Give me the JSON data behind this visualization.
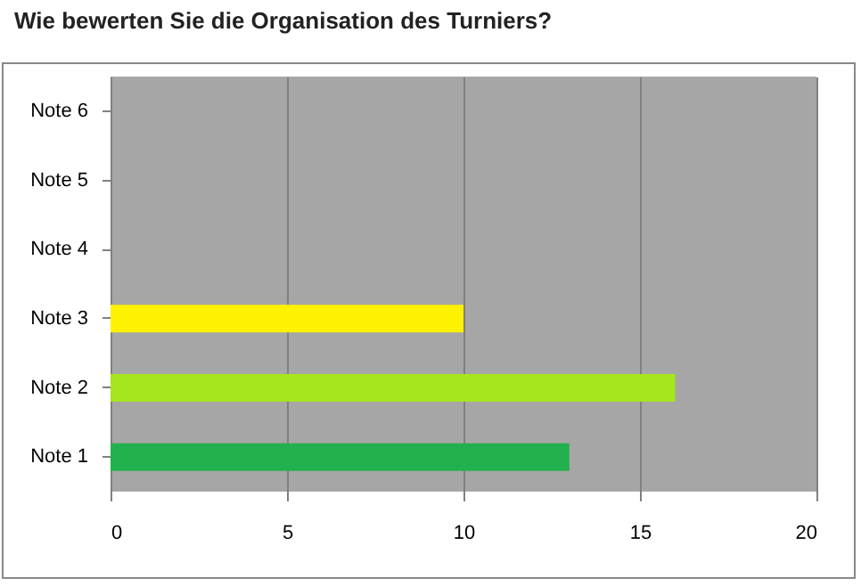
{
  "chart_data": {
    "type": "bar",
    "orientation": "horizontal",
    "title": "Wie bewerten Sie die Organisation des Turniers?",
    "categories": [
      "Note 6",
      "Note 5",
      "Note 4",
      "Note 3",
      "Note 2",
      "Note 1"
    ],
    "values": [
      0,
      0,
      0,
      10,
      16,
      13
    ],
    "colors": [
      "#a6a6a6",
      "#a6a6a6",
      "#a6a6a6",
      "#fff200",
      "#a6e61c",
      "#22b14c"
    ],
    "xlim": [
      0,
      20
    ],
    "xticks": [
      0,
      5,
      10,
      15,
      20
    ],
    "grid": "x"
  }
}
